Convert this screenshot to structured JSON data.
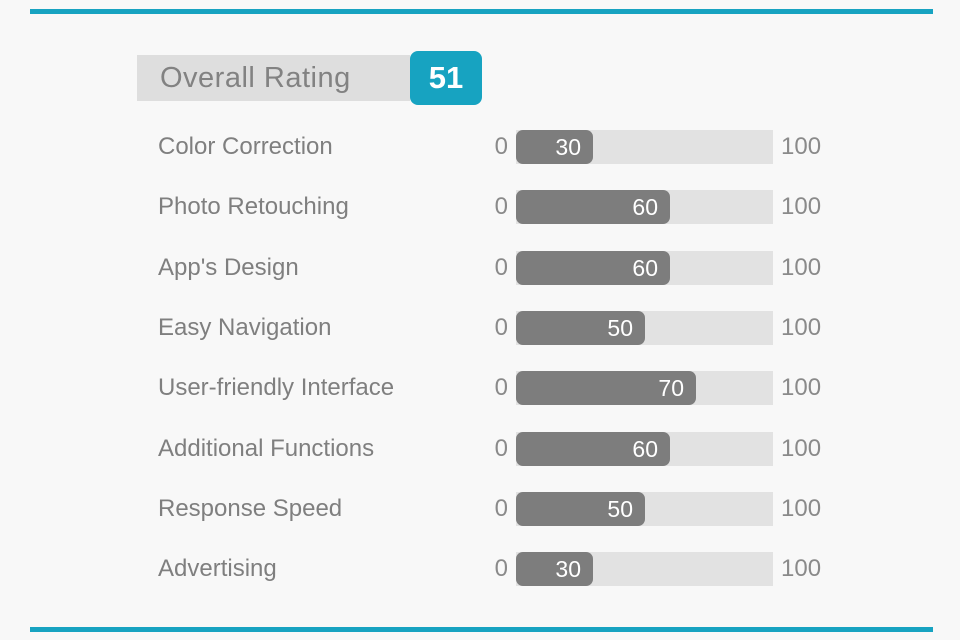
{
  "colors": {
    "background": "#f8f8f8",
    "accent_teal": "#17a3c1",
    "header_bar_bg": "#dedede",
    "header_title_text": "#828282",
    "bar_fill": "#7d7d7d",
    "bar_track": "#e2e2e2",
    "label_text": "#7f7f7f",
    "axis_text": "#8a8a8a",
    "value_text": "#ffffff"
  },
  "header": {
    "title": "Overall Rating",
    "score": "51"
  },
  "chart_data": {
    "type": "bar",
    "orientation": "horizontal",
    "title": "Overall Rating",
    "overall_score": 51,
    "categories": [
      "Color Correction",
      "Photo Retouching",
      "App's Design",
      "Easy Navigation",
      "User-friendly Interface",
      "Additional Functions",
      "Response Speed",
      "Advertising"
    ],
    "values": [
      30,
      60,
      60,
      50,
      70,
      60,
      50,
      30
    ],
    "xlim": [
      0,
      100
    ],
    "axis_min_label": "0",
    "axis_max_label": "100",
    "grid": false,
    "legend": false,
    "value_labels": "inside-bar-right",
    "bar_color": "#7d7d7d",
    "track_color": "#e2e2e2"
  }
}
